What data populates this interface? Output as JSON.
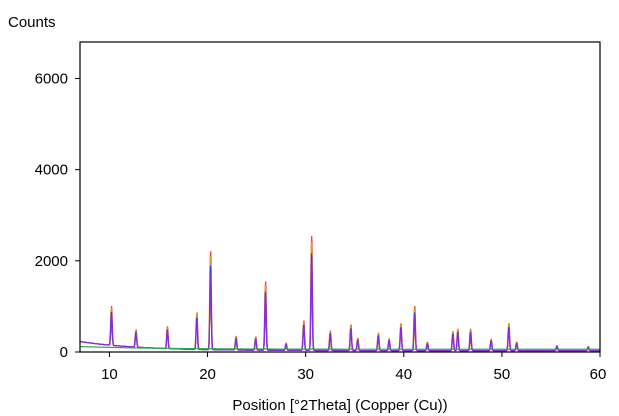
{
  "chart_data": {
    "type": "line",
    "title": "",
    "ylabel": "Counts",
    "xlabel": "Position [°2Theta] (Copper (Cu))",
    "xlim": [
      7,
      60
    ],
    "ylim": [
      0,
      6800
    ],
    "x_ticks": [
      10,
      20,
      30,
      40,
      50,
      60
    ],
    "y_ticks": [
      0,
      2000,
      4000,
      6000
    ],
    "grid": false,
    "legend": "none",
    "background": 200,
    "peaks": [
      [
        10.2,
        850
      ],
      [
        12.7,
        380
      ],
      [
        15.9,
        480
      ],
      [
        18.9,
        800
      ],
      [
        20.3,
        2150
      ],
      [
        22.9,
        300
      ],
      [
        24.9,
        290
      ],
      [
        25.9,
        1500
      ],
      [
        28.0,
        160
      ],
      [
        29.8,
        650
      ],
      [
        30.6,
        2500
      ],
      [
        32.5,
        430
      ],
      [
        34.6,
        560
      ],
      [
        35.3,
        270
      ],
      [
        37.4,
        380
      ],
      [
        38.5,
        260
      ],
      [
        39.7,
        590
      ],
      [
        41.1,
        970
      ],
      [
        42.4,
        180
      ],
      [
        45.0,
        420
      ],
      [
        45.5,
        470
      ],
      [
        46.8,
        470
      ],
      [
        48.9,
        250
      ],
      [
        50.7,
        590
      ],
      [
        51.5,
        190
      ],
      [
        55.6,
        110
      ],
      [
        58.8,
        90
      ]
    ],
    "series": [
      {
        "color": "#e8402a"
      },
      {
        "color": "#e89a20"
      },
      {
        "color": "#3a3adc"
      },
      {
        "color": "#8a2be2"
      },
      {
        "color": "#2aa84a"
      }
    ]
  }
}
